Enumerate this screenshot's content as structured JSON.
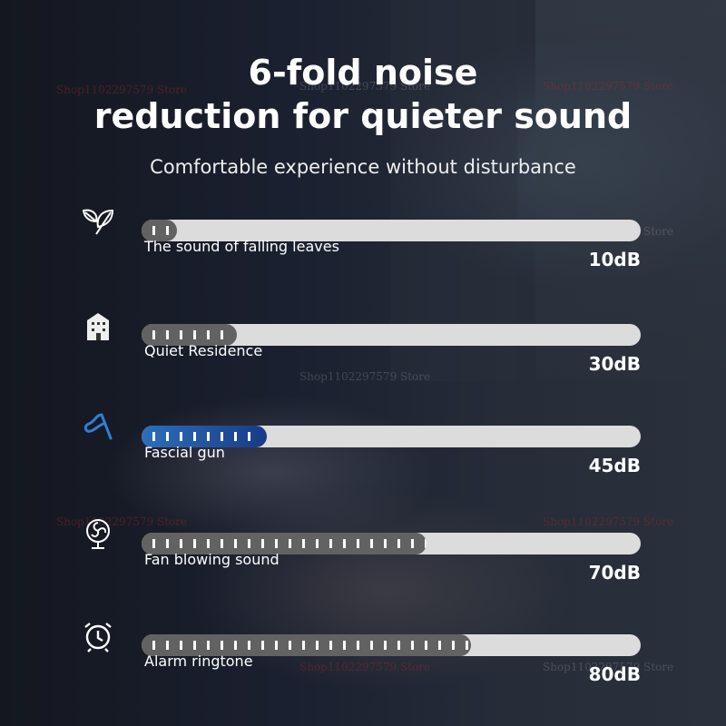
{
  "heading": {
    "line1": "6-fold noise",
    "line2": "reduction for quieter sound",
    "subtitle": "Comfortable experience without disturbance"
  },
  "watermark": "Shop1102297579 Store",
  "levels": [
    {
      "icon": "leaf-icon",
      "label": "The sound of falling leaves",
      "value": "10dB",
      "db": 10,
      "fill_percent": 7,
      "ticks": 2,
      "color": "#626262"
    },
    {
      "icon": "building-icon",
      "label": "Quiet Residence",
      "value": "30dB",
      "db": 30,
      "fill_percent": 19,
      "ticks": 6,
      "color": "#626262"
    },
    {
      "icon": "massage-gun-icon",
      "label": "Fascial gun",
      "value": "45dB",
      "db": 45,
      "fill_percent": 25,
      "ticks": 8,
      "color": "#2c6fba"
    },
    {
      "icon": "fan-icon",
      "label": "Fan blowing sound",
      "value": "70dB",
      "db": 70,
      "fill_percent": 57,
      "ticks": 21,
      "color": "#626262"
    },
    {
      "icon": "alarm-clock-icon",
      "label": "Alarm ringtone",
      "value": "80dB",
      "db": 80,
      "fill_percent": 66,
      "ticks": 24,
      "color": "#626262"
    }
  ]
}
